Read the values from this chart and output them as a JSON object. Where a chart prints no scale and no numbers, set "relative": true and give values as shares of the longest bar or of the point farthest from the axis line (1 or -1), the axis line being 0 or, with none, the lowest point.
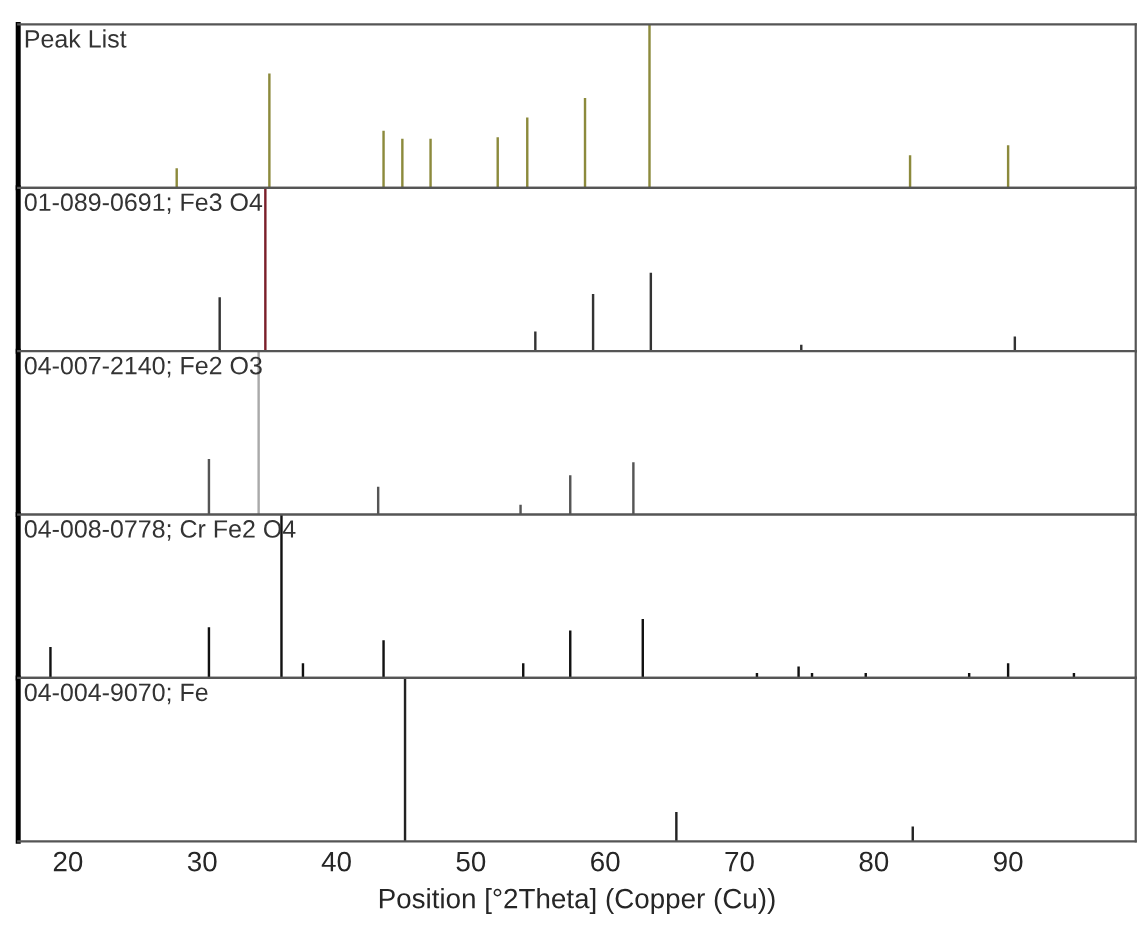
{
  "chart_data": [
    {
      "type": "bar",
      "title": "Peak List",
      "relative": true,
      "xlim": [
        16.3,
        99.5
      ],
      "tick_labels": false,
      "x": [
        28.1,
        35.0,
        43.5,
        44.9,
        47.0,
        52.0,
        54.2,
        58.5,
        63.3,
        82.7,
        90.0
      ],
      "values": [
        0.12,
        0.7,
        0.35,
        0.3,
        0.3,
        0.31,
        0.43,
        0.55,
        1,
        0.2,
        0.26
      ],
      "color": "#8c8a3c"
    },
    {
      "type": "bar",
      "title": "01-089-0691; Fe3 O4",
      "relative": true,
      "xlim": [
        16.3,
        99.5
      ],
      "tick_labels": false,
      "x": [
        31.3,
        34.7,
        54.8,
        59.1,
        63.4,
        74.6,
        90.5
      ],
      "values": [
        0.33,
        1,
        0.12,
        0.35,
        0.48,
        0.04,
        0.09
      ],
      "colors": [
        "#333333",
        "#7b1f2a",
        "#333333",
        "#333333",
        "#333333",
        "#333333",
        "#333333"
      ]
    },
    {
      "type": "bar",
      "title": "04-007-2140; Fe2 O3",
      "relative": true,
      "xlim": [
        16.3,
        99.5
      ],
      "tick_labels": false,
      "x": [
        30.5,
        34.2,
        43.1,
        53.7,
        57.4,
        62.1
      ],
      "values": [
        0.34,
        1,
        0.17,
        0.06,
        0.24,
        0.32
      ],
      "colors": [
        "#555555",
        "#aaaaaa",
        "#555555",
        "#555555",
        "#555555",
        "#555555"
      ]
    },
    {
      "type": "bar",
      "title": "04-008-0778; Cr Fe2 O4",
      "relative": true,
      "xlim": [
        16.3,
        99.5
      ],
      "tick_labels": false,
      "x": [
        18.7,
        30.5,
        35.9,
        37.5,
        43.5,
        53.9,
        57.4,
        62.8,
        71.3,
        74.4,
        75.4,
        79.4,
        87.1,
        90.0,
        94.9
      ],
      "values": [
        0.19,
        0.31,
        1,
        0.09,
        0.23,
        0.09,
        0.29,
        0.36,
        0.03,
        0.07,
        0.03,
        0.03,
        0.03,
        0.09,
        0.03
      ],
      "color": "#111111"
    },
    {
      "type": "bar",
      "title": "04-004-9070; Fe",
      "relative": true,
      "xlim": [
        16.3,
        99.5
      ],
      "xticks": [
        20,
        30,
        40,
        50,
        60,
        70,
        80,
        90
      ],
      "tick_labels": "x",
      "xlabel": "Position [°2Theta] (Copper (Cu))",
      "x": [
        45.1,
        65.3,
        82.9
      ],
      "values": [
        1,
        0.18,
        0.09
      ],
      "color": "#222222"
    }
  ]
}
